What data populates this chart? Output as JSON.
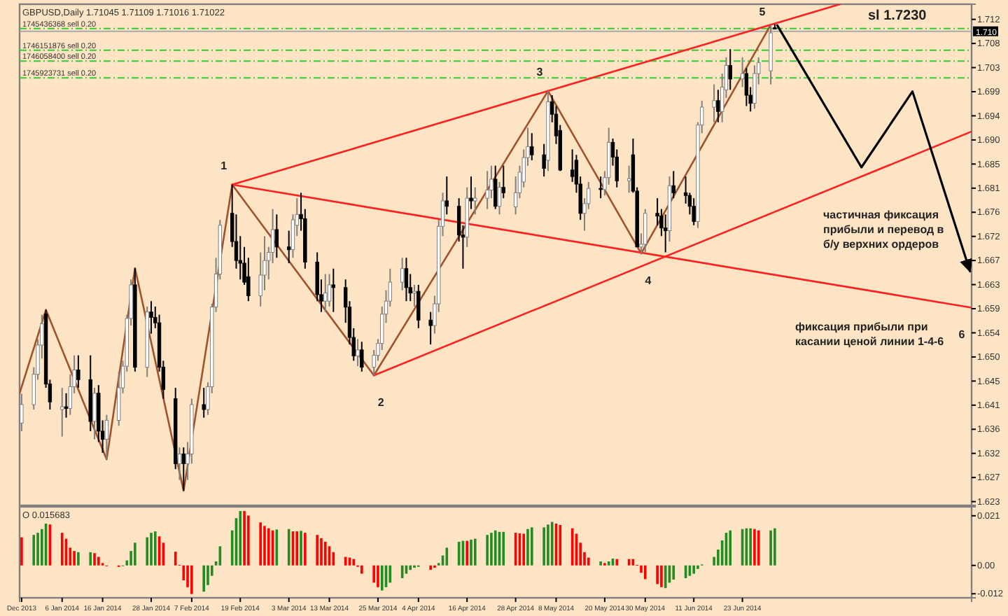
{
  "chart_data": [
    {
      "type": "candlestick",
      "title": "GBPUSD,Daily 1.71045 1.71109 1.71016 1.71022",
      "x": [
        "2013-12-27",
        "2013-12-30",
        "2013-12-31",
        "2014-01-01",
        "2014-01-02",
        "2014-01-03",
        "2014-01-06",
        "2014-01-07",
        "2014-01-08",
        "2014-01-09",
        "2014-01-10",
        "2014-01-13",
        "2014-01-14",
        "2014-01-15",
        "2014-01-16",
        "2014-01-17",
        "2014-01-20",
        "2014-01-21",
        "2014-01-22",
        "2014-01-23",
        "2014-01-24",
        "2014-01-27",
        "2014-01-28",
        "2014-01-29",
        "2014-01-30",
        "2014-01-31",
        "2014-02-03",
        "2014-02-04",
        "2014-02-05",
        "2014-02-06",
        "2014-02-07",
        "2014-02-10",
        "2014-02-11",
        "2014-02-12",
        "2014-02-13",
        "2014-02-14",
        "2014-02-17",
        "2014-02-18",
        "2014-02-19",
        "2014-02-20",
        "2014-02-21",
        "2014-02-24",
        "2014-02-25",
        "2014-02-26",
        "2014-02-27",
        "2014-02-28",
        "2014-03-03",
        "2014-03-04",
        "2014-03-05",
        "2014-03-06",
        "2014-03-07",
        "2014-03-10",
        "2014-03-11",
        "2014-03-12",
        "2014-03-13",
        "2014-03-14",
        "2014-03-17",
        "2014-03-18",
        "2014-03-19",
        "2014-03-20",
        "2014-03-21",
        "2014-03-24",
        "2014-03-25",
        "2014-03-26",
        "2014-03-27",
        "2014-03-28",
        "2014-03-31",
        "2014-04-01",
        "2014-04-02",
        "2014-04-03",
        "2014-04-04",
        "2014-04-07",
        "2014-04-08",
        "2014-04-09",
        "2014-04-10",
        "2014-04-11",
        "2014-04-14",
        "2014-04-15",
        "2014-04-16",
        "2014-04-17",
        "2014-04-18",
        "2014-04-21",
        "2014-04-22",
        "2014-04-23",
        "2014-04-24",
        "2014-04-25",
        "2014-04-28",
        "2014-04-29",
        "2014-04-30",
        "2014-05-01",
        "2014-05-02",
        "2014-05-05",
        "2014-05-06",
        "2014-05-07",
        "2014-05-08",
        "2014-05-09",
        "2014-05-12",
        "2014-05-13",
        "2014-05-14",
        "2014-05-15",
        "2014-05-16",
        "2014-05-19",
        "2014-05-20",
        "2014-05-21",
        "2014-05-22",
        "2014-05-23",
        "2014-05-26",
        "2014-05-27",
        "2014-05-28",
        "2014-05-29",
        "2014-05-30",
        "2014-06-02",
        "2014-06-03",
        "2014-06-04",
        "2014-06-05",
        "2014-06-06",
        "2014-06-09",
        "2014-06-10",
        "2014-06-11",
        "2014-06-12",
        "2014-06-13",
        "2014-06-16",
        "2014-06-17",
        "2014-06-18",
        "2014-06-19",
        "2014-06-20",
        "2014-06-23",
        "2014-06-24",
        "2014-06-25",
        "2014-06-26",
        "2014-06-27",
        "2014-06-30",
        "2014-07-01"
      ],
      "ohlc": [
        [
          1.6375,
          1.6429,
          1.636,
          1.6409
        ],
        [
          1.6409,
          1.6478,
          1.64,
          1.6465
        ],
        [
          1.6465,
          1.653,
          1.6455,
          1.6519
        ],
        [
          1.6519,
          1.6575,
          1.6494,
          1.6558
        ],
        [
          1.6576,
          1.6584,
          1.644,
          1.6447
        ],
        [
          1.6447,
          1.6455,
          1.64,
          1.6414
        ],
        [
          1.64,
          1.644,
          1.635,
          1.6405
        ],
        [
          1.6405,
          1.643,
          1.6385,
          1.6402
        ],
        [
          1.6402,
          1.6465,
          1.639,
          1.6442
        ],
        [
          1.6442,
          1.65,
          1.643,
          1.6473
        ],
        [
          1.6473,
          1.65,
          1.644,
          1.6455
        ],
        [
          1.6455,
          1.65,
          1.636,
          1.6378
        ],
        [
          1.6378,
          1.644,
          1.6345,
          1.643
        ],
        [
          1.643,
          1.6445,
          1.634,
          1.636
        ],
        [
          1.636,
          1.638,
          1.632,
          1.6345
        ],
        [
          1.6345,
          1.639,
          1.6308,
          1.638
        ],
        [
          1.638,
          1.647,
          1.637,
          1.644
        ],
        [
          1.644,
          1.649,
          1.643,
          1.648
        ],
        [
          1.648,
          1.6575,
          1.647,
          1.6568
        ],
        [
          1.6568,
          1.664,
          1.6555,
          1.663
        ],
        [
          1.663,
          1.6661,
          1.647,
          1.6478
        ],
        [
          1.6478,
          1.659,
          1.646,
          1.658
        ],
        [
          1.658,
          1.66,
          1.654,
          1.657
        ],
        [
          1.657,
          1.659,
          1.655,
          1.656
        ],
        [
          1.656,
          1.6575,
          1.647,
          1.6478
        ],
        [
          1.6478,
          1.649,
          1.642,
          1.6437
        ],
        [
          1.642,
          1.644,
          1.629,
          1.63
        ],
        [
          1.63,
          1.633,
          1.627,
          1.6318
        ],
        [
          1.6318,
          1.633,
          1.625,
          1.63
        ],
        [
          1.63,
          1.634,
          1.627,
          1.6318
        ],
        [
          1.6318,
          1.642,
          1.63,
          1.6409
        ],
        [
          1.6409,
          1.644,
          1.6385,
          1.64
        ],
        [
          1.64,
          1.645,
          1.639,
          1.6442
        ],
        [
          1.6442,
          1.6595,
          1.643,
          1.6589
        ],
        [
          1.6589,
          1.668,
          1.658,
          1.665
        ],
        [
          1.665,
          1.675,
          1.664,
          1.674
        ],
        [
          1.6762,
          1.6815,
          1.67,
          1.671
        ],
        [
          1.671,
          1.676,
          1.666,
          1.6675
        ],
        [
          1.6675,
          1.672,
          1.664,
          1.667
        ],
        [
          1.667,
          1.67,
          1.663,
          1.6635
        ],
        [
          1.6645,
          1.668,
          1.66,
          1.661
        ],
        [
          1.661,
          1.669,
          1.659,
          1.6648
        ],
        [
          1.6648,
          1.672,
          1.662,
          1.6675
        ],
        [
          1.6675,
          1.67,
          1.664,
          1.669
        ],
        [
          1.669,
          1.677,
          1.667,
          1.6732
        ],
        [
          1.6732,
          1.676,
          1.668,
          1.67
        ],
        [
          1.67,
          1.673,
          1.667,
          1.6695
        ],
        [
          1.6695,
          1.676,
          1.668,
          1.675
        ],
        [
          1.674,
          1.679,
          1.672,
          1.676
        ],
        [
          1.676,
          1.68,
          1.673,
          1.6752
        ],
        [
          1.6752,
          1.677,
          1.666,
          1.6672
        ],
        [
          1.6672,
          1.669,
          1.66,
          1.6612
        ],
        [
          1.6612,
          1.664,
          1.658,
          1.66
        ],
        [
          1.66,
          1.665,
          1.658,
          1.6615
        ],
        [
          1.66,
          1.665,
          1.659,
          1.663
        ],
        [
          1.663,
          1.666,
          1.658,
          1.6625
        ],
        [
          1.6625,
          1.664,
          1.656,
          1.6589
        ],
        [
          1.6589,
          1.66,
          1.652,
          1.6533
        ],
        [
          1.6533,
          1.655,
          1.649,
          1.6499
        ],
        [
          1.6499,
          1.653,
          1.648,
          1.651
        ],
        [
          1.651,
          1.6525,
          1.647,
          1.6478
        ],
        [
          1.6478,
          1.651,
          1.6463,
          1.65
        ],
        [
          1.65,
          1.653,
          1.649,
          1.6522
        ],
        [
          1.6522,
          1.659,
          1.651,
          1.6576
        ],
        [
          1.6576,
          1.662,
          1.656,
          1.66
        ],
        [
          1.66,
          1.666,
          1.659,
          1.6635
        ],
        [
          1.6635,
          1.668,
          1.662,
          1.666
        ],
        [
          1.666,
          1.668,
          1.66,
          1.6625
        ],
        [
          1.6625,
          1.665,
          1.66,
          1.6615
        ],
        [
          1.6615,
          1.663,
          1.659,
          1.6618
        ],
        [
          1.6618,
          1.663,
          1.655,
          1.6565
        ],
        [
          1.6565,
          1.658,
          1.652,
          1.6555
        ],
        [
          1.6555,
          1.661,
          1.654,
          1.6595
        ],
        [
          1.6595,
          1.675,
          1.658,
          1.6738
        ],
        [
          1.6738,
          1.68,
          1.672,
          1.6785
        ],
        [
          1.6785,
          1.683,
          1.676,
          1.6775
        ],
        [
          1.6775,
          1.679,
          1.671,
          1.6722
        ],
        [
          1.6722,
          1.674,
          1.666,
          1.6718
        ],
        [
          1.6718,
          1.681,
          1.67,
          1.679
        ],
        [
          1.679,
          1.683,
          1.677,
          1.6785
        ],
        [
          1.6785,
          1.681,
          1.676,
          1.679
        ],
        [
          1.679,
          1.684,
          1.677,
          1.6805
        ],
        [
          1.6805,
          1.685,
          1.679,
          1.6825
        ],
        [
          1.6825,
          1.685,
          1.677,
          1.6775
        ],
        [
          1.6775,
          1.682,
          1.676,
          1.681
        ],
        [
          1.681,
          1.685,
          1.679,
          1.68
        ],
        [
          1.6774,
          1.683,
          1.676,
          1.68
        ],
        [
          1.68,
          1.685,
          1.679,
          1.6838
        ],
        [
          1.682,
          1.688,
          1.681,
          1.6865
        ],
        [
          1.6865,
          1.692,
          1.685,
          1.6885
        ],
        [
          1.6885,
          1.691,
          1.686,
          1.687
        ],
        [
          1.687,
          1.689,
          1.683,
          1.6845
        ],
        [
          1.686,
          1.6988,
          1.684,
          1.6968
        ],
        [
          1.6968,
          1.698,
          1.693,
          1.6945
        ],
        [
          1.6945,
          1.696,
          1.689,
          1.6905
        ],
        [
          1.6915,
          1.6925,
          1.684,
          1.6842
        ],
        [
          1.6842,
          1.688,
          1.682,
          1.683
        ],
        [
          1.686,
          1.687,
          1.68,
          1.6816
        ],
        [
          1.6816,
          1.683,
          1.675,
          1.6762
        ],
        [
          1.6762,
          1.679,
          1.673,
          1.678
        ],
        [
          1.678,
          1.682,
          1.677,
          1.6808
        ],
        [
          1.6808,
          1.683,
          1.679,
          1.6806
        ],
        [
          1.6806,
          1.684,
          1.6795,
          1.6828
        ],
        [
          1.6828,
          1.692,
          1.6815,
          1.6893
        ],
        [
          1.6893,
          1.69,
          1.685,
          1.6866
        ],
        [
          1.6866,
          1.688,
          1.681,
          1.6822
        ],
        [
          1.6822,
          1.685,
          1.68,
          1.6826
        ],
        [
          1.687,
          1.69,
          1.68,
          1.6803
        ],
        [
          1.6803,
          1.681,
          1.67,
          1.67
        ],
        [
          1.67,
          1.6725,
          1.6688,
          1.6705
        ],
        [
          1.6705,
          1.677,
          1.669,
          1.6762
        ],
        [
          1.6762,
          1.679,
          1.674,
          1.6757
        ],
        [
          1.6757,
          1.677,
          1.672,
          1.6735
        ],
        [
          1.6735,
          1.676,
          1.669,
          1.673
        ],
        [
          1.673,
          1.683,
          1.671,
          1.6813
        ],
        [
          1.6813,
          1.684,
          1.679,
          1.68
        ],
        [
          1.68,
          1.683,
          1.678,
          1.6795
        ],
        [
          1.6795,
          1.68,
          1.676,
          1.6775
        ],
        [
          1.6775,
          1.679,
          1.674,
          1.6747
        ],
        [
          1.6747,
          1.693,
          1.6735,
          1.6925
        ],
        [
          1.6925,
          1.697,
          1.691,
          1.6958
        ],
        [
          1.6958,
          1.7,
          1.693,
          1.697
        ],
        [
          1.697,
          1.699,
          1.693,
          1.695
        ],
        [
          1.695,
          1.702,
          1.693,
          1.6995
        ],
        [
          1.699,
          1.705,
          1.6975,
          1.7035
        ],
        [
          1.7035,
          1.7065,
          1.699,
          1.701
        ],
        [
          1.701,
          1.705,
          1.6995,
          1.702
        ],
        [
          1.702,
          1.703,
          1.696,
          1.698
        ],
        [
          1.698,
          1.6995,
          1.695,
          1.6965
        ],
        [
          1.6965,
          1.7035,
          1.6955,
          1.702
        ],
        [
          1.702,
          1.705,
          1.7,
          1.704
        ],
        [
          1.7025,
          1.711,
          1.7,
          1.7095
        ],
        [
          1.71045,
          1.71109,
          1.71016,
          1.71022
        ]
      ],
      "xlim": [
        "2013-12-26T12:00",
        "2014-08-18T14:24"
      ],
      "ylim": [
        1.6223,
        1.7148
      ],
      "yticks": [
        {
          "value": 1.623,
          "label": "1.623"
        },
        {
          "value": 1.62745,
          "label": "1.627"
        },
        {
          "value": 1.6319,
          "label": "1.632"
        },
        {
          "value": 1.63635,
          "label": "1.636"
        },
        {
          "value": 1.6408,
          "label": "1.641"
        },
        {
          "value": 1.64525,
          "label": "1.645"
        },
        {
          "value": 1.6497,
          "label": "1.650"
        },
        {
          "value": 1.65415,
          "label": "1.654"
        },
        {
          "value": 1.6586,
          "label": "1.659"
        },
        {
          "value": 1.66305,
          "label": "1.663"
        },
        {
          "value": 1.6675,
          "label": "1.667"
        },
        {
          "value": 1.67195,
          "label": "1.672"
        },
        {
          "value": 1.6764,
          "label": "1.676"
        },
        {
          "value": 1.68085,
          "label": "1.681"
        },
        {
          "value": 1.6853,
          "label": "1.685"
        },
        {
          "value": 1.68975,
          "label": "1.690"
        },
        {
          "value": 1.6942,
          "label": "1.694"
        },
        {
          "value": 1.69865,
          "label": "1.699"
        },
        {
          "value": 1.7031,
          "label": "1.703"
        },
        {
          "value": 1.70755,
          "label": "1.708"
        },
        {
          "value": 1.712,
          "label": "1.712"
        }
      ],
      "tick_labels": "y",
      "series": [
        {
          "type": "line",
          "color": "#a0522d",
          "x": [
            "2013-12-26T12:00",
            "2014-01-02",
            "2014-01-17",
            "2014-01-24",
            "2014-02-05",
            "2014-02-17",
            "2014-03-24",
            "2014-05-06",
            "2014-05-29",
            "2014-06-30"
          ],
          "values": [
            1.643,
            1.6584,
            1.6308,
            1.6661,
            1.625,
            1.6815,
            1.6463,
            1.6988,
            1.6688,
            1.711
          ]
        },
        {
          "type": "line",
          "color": "#ff2020",
          "x": [
            "2014-02-17",
            "2014-07-17T02:24"
          ],
          "values": [
            1.6815,
            1.7148
          ]
        },
        {
          "type": "line",
          "color": "#ff2020",
          "x": [
            "2014-02-17",
            "2014-08-18T14:24"
          ],
          "values": [
            1.6815,
            1.6588
          ]
        },
        {
          "type": "line",
          "color": "#ff2020",
          "x": [
            "2014-03-24",
            "2014-08-18T14:24"
          ],
          "values": [
            1.6463,
            1.6913
          ]
        },
        {
          "type": "line",
          "color": "#000000",
          "x": [
            "2014-07-01T14:24",
            "2014-07-22T09:36",
            "2014-08-04",
            "2014-08-18T04:48"
          ],
          "values": [
            1.7109,
            1.6847,
            1.6987,
            1.6655
          ]
        }
      ],
      "ref_lines": [
        {
          "axis": "y",
          "value": 1.7103,
          "label": "1745436368 sell 0.20",
          "color": "#32cd32",
          "line_style": "dashed"
        },
        {
          "axis": "y",
          "value": 1.7063,
          "label": "1746151876 sell 0.20",
          "color": "#32cd32",
          "line_style": "dashed"
        },
        {
          "axis": "y",
          "value": 1.7043,
          "label": "1746058400 sell 0.20",
          "color": "#32cd32",
          "line_style": "dashed"
        },
        {
          "axis": "y",
          "value": 1.7012,
          "label": "1745923731 sell 0.20",
          "color": "#32cd32",
          "line_style": "dashed"
        },
        {
          "axis": "y",
          "value": 1.7098,
          "label": "1.710",
          "color": "#a9a9a9",
          "line_style": "solid"
        }
      ],
      "annotations": [
        {
          "text": "1",
          "x": "2014-02-17",
          "y": 1.6815
        },
        {
          "text": "2",
          "x": "2014-03-24",
          "y": 1.6463
        },
        {
          "text": "3",
          "x": "2014-05-06",
          "y": 1.6988
        },
        {
          "text": "4",
          "x": "2014-05-29",
          "y": 1.6688
        },
        {
          "text": "5",
          "x": "2014-06-30",
          "y": 1.711
        },
        {
          "text": "6",
          "x": "2014-08-18T14:24",
          "y": 1.6588
        },
        "sl 1.7230",
        "частичная фиксация\nприбыли и перевод в\nб/у верхних ордеров",
        "фиксация прибыли при\nкасании ценой линии 1-4-6"
      ]
    },
    {
      "type": "bar",
      "title": "O 0.015683",
      "x": [
        "2013-12-27",
        "2013-12-30",
        "2013-12-31",
        "2014-01-01",
        "2014-01-02",
        "2014-01-03",
        "2014-01-06",
        "2014-01-07",
        "2014-01-08",
        "2014-01-09",
        "2014-01-10",
        "2014-01-13",
        "2014-01-14",
        "2014-01-15",
        "2014-01-16",
        "2014-01-17",
        "2014-01-20",
        "2014-01-21",
        "2014-01-22",
        "2014-01-23",
        "2014-01-24",
        "2014-01-27",
        "2014-01-28",
        "2014-01-29",
        "2014-01-30",
        "2014-01-31",
        "2014-02-03",
        "2014-02-04",
        "2014-02-05",
        "2014-02-06",
        "2014-02-07",
        "2014-02-10",
        "2014-02-11",
        "2014-02-12",
        "2014-02-13",
        "2014-02-14",
        "2014-02-17",
        "2014-02-18",
        "2014-02-19",
        "2014-02-20",
        "2014-02-21",
        "2014-02-24",
        "2014-02-25",
        "2014-02-26",
        "2014-02-27",
        "2014-02-28",
        "2014-03-03",
        "2014-03-04",
        "2014-03-05",
        "2014-03-06",
        "2014-03-07",
        "2014-03-10",
        "2014-03-11",
        "2014-03-12",
        "2014-03-13",
        "2014-03-14",
        "2014-03-17",
        "2014-03-18",
        "2014-03-19",
        "2014-03-20",
        "2014-03-21",
        "2014-03-24",
        "2014-03-25",
        "2014-03-26",
        "2014-03-27",
        "2014-03-28",
        "2014-03-31",
        "2014-04-01",
        "2014-04-02",
        "2014-04-03",
        "2014-04-04",
        "2014-04-07",
        "2014-04-08",
        "2014-04-09",
        "2014-04-10",
        "2014-04-11",
        "2014-04-14",
        "2014-04-15",
        "2014-04-16",
        "2014-04-17",
        "2014-04-18",
        "2014-04-21",
        "2014-04-22",
        "2014-04-23",
        "2014-04-24",
        "2014-04-25",
        "2014-04-28",
        "2014-04-29",
        "2014-04-30",
        "2014-05-01",
        "2014-05-02",
        "2014-05-05",
        "2014-05-06",
        "2014-05-07",
        "2014-05-08",
        "2014-05-09",
        "2014-05-12",
        "2014-05-13",
        "2014-05-14",
        "2014-05-15",
        "2014-05-16",
        "2014-05-19",
        "2014-05-20",
        "2014-05-21",
        "2014-05-22",
        "2014-05-23",
        "2014-05-26",
        "2014-05-27",
        "2014-05-28",
        "2014-05-29",
        "2014-05-30",
        "2014-06-02",
        "2014-06-03",
        "2014-06-04",
        "2014-06-05",
        "2014-06-06",
        "2014-06-09",
        "2014-06-10",
        "2014-06-11",
        "2014-06-12",
        "2014-06-13",
        "2014-06-16",
        "2014-06-17",
        "2014-06-18",
        "2014-06-19",
        "2014-06-20",
        "2014-06-23",
        "2014-06-24",
        "2014-06-25",
        "2014-06-26",
        "2014-06-27",
        "2014-06-30",
        "2014-07-01"
      ],
      "values": [
        0.0119,
        0.0129,
        0.0138,
        0.0154,
        0.0177,
        0.0173,
        0.0138,
        0.0113,
        0.0075,
        0.0061,
        0.0056,
        0.0056,
        0.0052,
        0.0036,
        0.001,
        -0.0002,
        -0.0006,
        -0.0002,
        0.0021,
        0.0061,
        0.0096,
        0.0119,
        0.0138,
        0.0144,
        0.0123,
        0.0096,
        0.0058,
        0.0002,
        -0.0063,
        -0.0092,
        -0.0121,
        -0.0111,
        -0.0083,
        -0.0044,
        0.0017,
        0.0081,
        0.0148,
        0.02,
        0.023,
        0.023,
        0.0211,
        0.0182,
        0.0167,
        0.0157,
        0.0148,
        0.0152,
        0.0154,
        0.0144,
        0.0144,
        0.0146,
        0.0138,
        0.0129,
        0.0115,
        0.01,
        0.0081,
        0.0056,
        0.0036,
        0.0033,
        0.0027,
        -0.0006,
        -0.0035,
        -0.0073,
        -0.0092,
        -0.0106,
        -0.0092,
        -0.0073,
        -0.0054,
        -0.0035,
        -0.0019,
        -0.001,
        -0.0006,
        -0.0019,
        -0.001,
        0.001,
        0.0042,
        0.0075,
        0.01,
        0.0104,
        0.0104,
        0.0109,
        0.0113,
        0.0129,
        0.0138,
        0.0148,
        0.0142,
        0.0142,
        0.0138,
        0.0136,
        0.0134,
        0.0154,
        0.0161,
        0.0161,
        0.0173,
        0.0184,
        0.0177,
        0.0171,
        0.0157,
        0.0134,
        0.0096,
        0.0056,
        0.0033,
        0.0017,
        0.001,
        0.0017,
        0.0029,
        0.0027,
        0.0027,
        0.0027,
        0.0002,
        -0.0031,
        -0.0058,
        -0.0079,
        -0.0092,
        -0.0096,
        -0.0073,
        -0.006,
        -0.0054,
        -0.0044,
        -0.0035,
        -0.0015,
        0.0004,
        0.0036,
        0.0067,
        0.0106,
        0.0138,
        0.0148,
        0.0154,
        0.0157,
        0.0157,
        0.0154,
        0.0148,
        0.0148,
        0.0157
      ],
      "colors": [
        "#ff0000",
        "#228b22",
        "#228b22",
        "#228b22",
        "#228b22",
        "#ff0000",
        "#ff0000",
        "#ff0000",
        "#ff0000",
        "#ff0000",
        "#228b22",
        "#228b22",
        "#ff0000",
        "#ff0000",
        "#ff0000",
        "#ff0000",
        "#ff0000",
        "#228b22",
        "#228b22",
        "#228b22",
        "#228b22",
        "#228b22",
        "#228b22",
        "#228b22",
        "#ff0000",
        "#ff0000",
        "#ff0000",
        "#ff0000",
        "#ff0000",
        "#ff0000",
        "#ff0000",
        "#228b22",
        "#228b22",
        "#228b22",
        "#228b22",
        "#228b22",
        "#228b22",
        "#228b22",
        "#228b22",
        "#ff0000",
        "#ff0000",
        "#ff0000",
        "#ff0000",
        "#ff0000",
        "#ff0000",
        "#228b22",
        "#228b22",
        "#ff0000",
        "#ff0000",
        "#228b22",
        "#ff0000",
        "#ff0000",
        "#ff0000",
        "#ff0000",
        "#ff0000",
        "#ff0000",
        "#ff0000",
        "#ff0000",
        "#ff0000",
        "#ff0000",
        "#ff0000",
        "#ff0000",
        "#ff0000",
        "#228b22",
        "#228b22",
        "#228b22",
        "#228b22",
        "#228b22",
        "#228b22",
        "#228b22",
        "#228b22",
        "#ff0000",
        "#ff0000",
        "#228b22",
        "#228b22",
        "#228b22",
        "#228b22",
        "#228b22",
        "#ff0000",
        "#228b22",
        "#228b22",
        "#228b22",
        "#228b22",
        "#228b22",
        "#228b22",
        "#228b22",
        "#ff0000",
        "#ff0000",
        "#ff0000",
        "#228b22",
        "#228b22",
        "#228b22",
        "#228b22",
        "#228b22",
        "#ff0000",
        "#ff0000",
        "#ff0000",
        "#ff0000",
        "#ff0000",
        "#ff0000",
        "#ff0000",
        "#228b22",
        "#ff0000",
        "#228b22",
        "#228b22",
        "#ff0000",
        "#ff0000",
        "#ff0000",
        "#ff0000",
        "#ff0000",
        "#ff0000",
        "#ff0000",
        "#ff0000",
        "#228b22",
        "#228b22",
        "#228b22",
        "#228b22",
        "#228b22",
        "#228b22",
        "#228b22",
        "#228b22",
        "#228b22",
        "#228b22",
        "#228b22",
        "#228b22",
        "#228b22",
        "#228b22",
        "#228b22",
        "#228b22",
        "#ff0000",
        "#ff0000",
        "#228b22",
        "#228b22"
      ],
      "xlim": [
        "2013-12-26T12:00",
        "2014-08-18T14:24"
      ],
      "xticks": [
        {
          "value": "2013-12-27",
          "label": "Dec 2013"
        },
        {
          "value": "2014-01-06",
          "label": "6 Jan 2014"
        },
        {
          "value": "2014-01-16",
          "label": "16 Jan 2014"
        },
        {
          "value": "2014-01-28",
          "label": "28 Jan 2014"
        },
        {
          "value": "2014-02-07",
          "label": "7 Feb 2014"
        },
        {
          "value": "2014-02-19",
          "label": "19 Feb 2014"
        },
        {
          "value": "2014-03-03",
          "label": "3 Mar 2014"
        },
        {
          "value": "2014-03-13",
          "label": "13 Mar 2014"
        },
        {
          "value": "2014-03-25",
          "label": "25 Mar 2014"
        },
        {
          "value": "2014-04-04",
          "label": "4 Apr 2014"
        },
        {
          "value": "2014-04-16",
          "label": "16 Apr 2014"
        },
        {
          "value": "2014-04-28",
          "label": "28 Apr 2014"
        },
        {
          "value": "2014-05-08",
          "label": "8 May 2014"
        },
        {
          "value": "2014-05-20",
          "label": "20 May 2014"
        },
        {
          "value": "2014-05-30",
          "label": "30 May 2014"
        },
        {
          "value": "2014-06-11",
          "label": "11 Jun 2014"
        },
        {
          "value": "2014-06-23",
          "label": "23 Jun 2014"
        }
      ],
      "ylim": [
        -0.0137,
        0.0248
      ],
      "yticks": [
        {
          "value": 0.021,
          "label": "0.021"
        },
        {
          "value": 0,
          "label": "0.00"
        },
        {
          "value": -0.012,
          "label": "-0.012"
        }
      ]
    }
  ]
}
